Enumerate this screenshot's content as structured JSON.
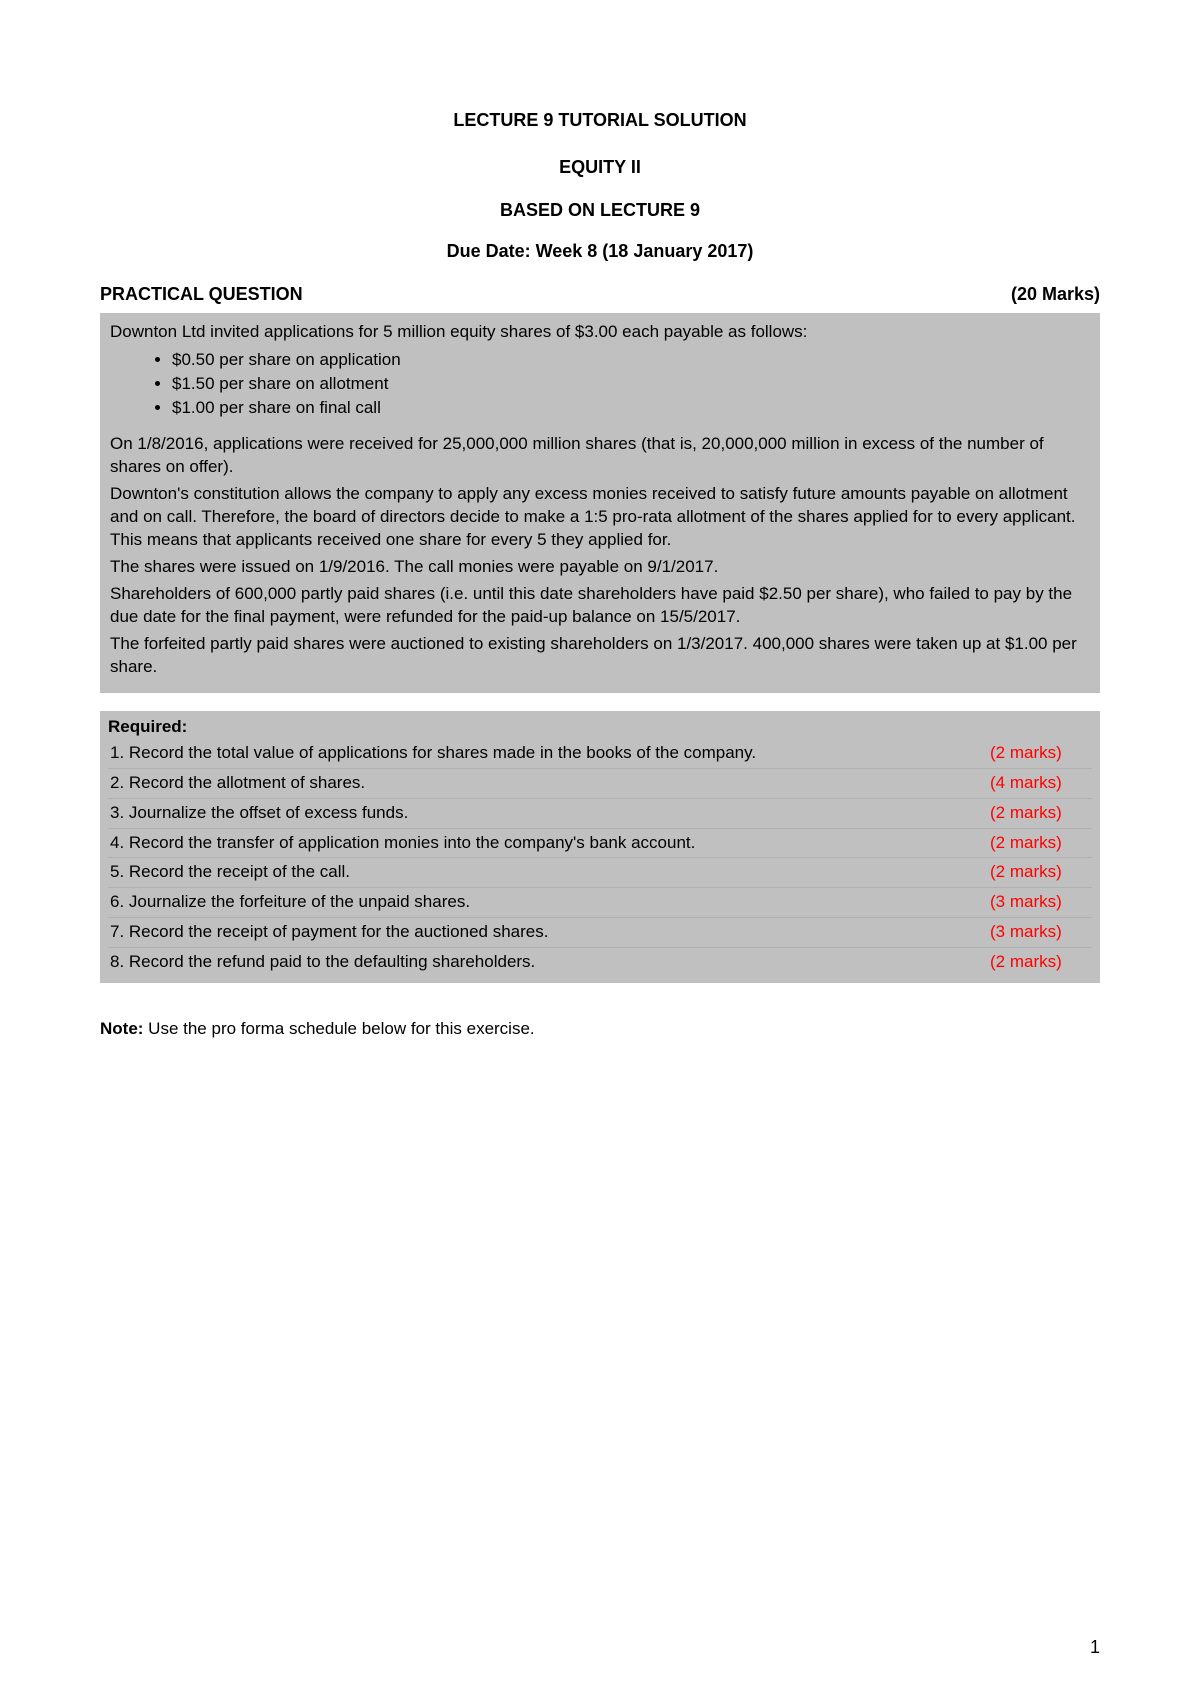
{
  "header": {
    "title1": "LECTURE 9 TUTORIAL SOLUTION",
    "title2": "EQUITY II",
    "title3": "BASED ON LECTURE 9",
    "due_date": "Due Date: Week 8 (18 January 2017)"
  },
  "section": {
    "label": "PRACTICAL QUESTION",
    "marks": "(20 Marks)"
  },
  "scenario": {
    "intro": "Downton Ltd invited applications for 5 million equity shares of $3.00 each payable as follows:",
    "bullets": [
      "$0.50 per share on application",
      "$1.50 per share on allotment",
      "$1.00 per share on final call"
    ],
    "p1": "On 1/8/2016, applications were received for 25,000,000 million shares (that is, 20,000,000 million in excess of the number of shares on offer).",
    "p2": "Downton's constitution allows the company to apply any excess monies received to satisfy future amounts payable on allotment and on call. Therefore, the board of directors decide to make a 1:5 pro-rata allotment of the shares applied for to every applicant. This means that applicants received one share for every 5 they applied for.",
    "p3": "The shares were issued on 1/9/2016. The call monies were payable on 9/1/2017.",
    "p4": "Shareholders of 600,000 partly paid shares (i.e. until this date shareholders have paid $2.50 per share), who failed to pay by the due date for the final payment, were refunded for the paid-up balance on 15/5/2017.",
    "p5": "The forfeited partly paid shares were auctioned to existing shareholders on 1/3/2017. 400,000 shares were taken up at $1.00 per share."
  },
  "required": {
    "heading": "Required:",
    "items": [
      {
        "text": "1. Record the total value of applications for shares made in the books of the company.",
        "marks": "(2 marks)"
      },
      {
        "text": "2. Record the allotment of shares.",
        "marks": "(4 marks)"
      },
      {
        "text": "3. Journalize the offset of excess funds.",
        "marks": "(2 marks)"
      },
      {
        "text": "4.  Record the transfer of application monies into the company's bank account.",
        "marks": "(2 marks)"
      },
      {
        "text": "5.  Record the receipt of the call.",
        "marks": "(2 marks)"
      },
      {
        "text": "6.  Journalize the forfeiture of the unpaid shares.",
        "marks": "(3 marks)"
      },
      {
        "text": "7.  Record the receipt of payment for the auctioned shares.",
        "marks": "(3 marks)"
      },
      {
        "text": "8.  Record the refund paid to the defaulting shareholders.",
        "marks": "(2 marks)"
      }
    ]
  },
  "note": {
    "label": "Note:",
    "text": " Use the pro forma schedule below for this exercise."
  },
  "page_number": "1",
  "colors": {
    "box_bg": "#c0c0c0",
    "marks_color": "#ff0000",
    "text_color": "#000000",
    "page_bg": "#ffffff"
  },
  "typography": {
    "body_fontsize": 17,
    "heading_fontsize": 18,
    "font_family": "Arial"
  }
}
